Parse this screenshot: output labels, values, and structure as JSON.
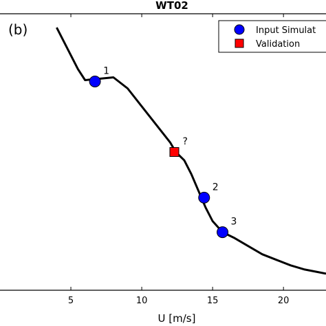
{
  "chart_data": {
    "type": "line",
    "title": "WT02",
    "panel_label": "(b)",
    "xlabel": "U [m/s]",
    "ylabel": "",
    "xlim": [
      0,
      23
    ],
    "x_ticks": [
      5,
      10,
      15,
      20
    ],
    "x_tick_labels": [
      "5",
      "10",
      "15",
      "20"
    ],
    "ylim": [
      0,
      1
    ],
    "grid": false,
    "legend_position": "top-right",
    "curve": {
      "x": [
        4.0,
        4.8,
        5.5,
        6.0,
        7.0,
        8.0,
        9.0,
        10.0,
        11.0,
        12.0,
        12.4,
        13.0,
        13.5,
        14.0,
        14.5,
        15.0,
        15.7,
        16.5,
        17.5,
        18.5,
        19.5,
        20.5,
        21.5,
        22.5,
        23.0
      ],
      "y": [
        0.95,
        0.87,
        0.8,
        0.76,
        0.765,
        0.77,
        0.73,
        0.665,
        0.6,
        0.535,
        0.5,
        0.47,
        0.42,
        0.36,
        0.3,
        0.25,
        0.21,
        0.19,
        0.16,
        0.13,
        0.11,
        0.09,
        0.075,
        0.065,
        0.06
      ]
    },
    "series": [
      {
        "name": "Input Simulat",
        "marker": "circle",
        "color": "#0000ff",
        "points": [
          {
            "x": 6.7,
            "y": 0.755,
            "label": "1"
          },
          {
            "x": 14.4,
            "y": 0.335,
            "label": "2"
          },
          {
            "x": 15.7,
            "y": 0.21,
            "label": "3"
          }
        ]
      },
      {
        "name": "Validation",
        "marker": "square",
        "color": "#ff0000",
        "points": [
          {
            "x": 12.3,
            "y": 0.5,
            "label": "?"
          }
        ]
      }
    ]
  }
}
